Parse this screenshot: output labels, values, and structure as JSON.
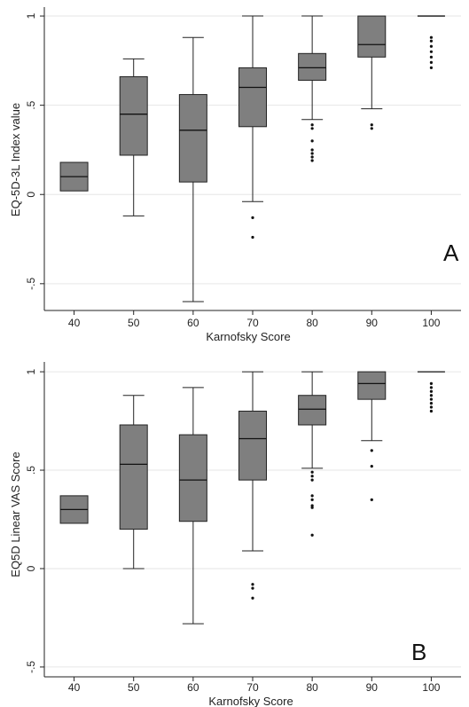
{
  "chart_data": [
    {
      "type": "box",
      "panel_label": "A",
      "xlabel": "Karnofsky Score",
      "ylabel": "EQ-5D-3L Index value",
      "categories": [
        "40",
        "50",
        "60",
        "70",
        "80",
        "90",
        "100"
      ],
      "ylim": [
        -0.65,
        1.05
      ],
      "yticks": [
        {
          "value": -0.5,
          "label": "-.5"
        },
        {
          "value": 0,
          "label": "0"
        },
        {
          "value": 0.5,
          "label": ".5"
        },
        {
          "value": 1,
          "label": "1"
        }
      ],
      "grid": "horizontal",
      "box_color": "#7f7f7f",
      "boxes": [
        {
          "category": "40",
          "whisker_low": 0.02,
          "q1": 0.02,
          "median": 0.1,
          "q3": 0.18,
          "whisker_high": 0.18,
          "outliers": []
        },
        {
          "category": "50",
          "whisker_low": -0.12,
          "q1": 0.22,
          "median": 0.45,
          "q3": 0.66,
          "whisker_high": 0.76,
          "outliers": []
        },
        {
          "category": "60",
          "whisker_low": -0.6,
          "q1": 0.07,
          "median": 0.36,
          "q3": 0.56,
          "whisker_high": 0.88,
          "outliers": []
        },
        {
          "category": "70",
          "whisker_low": -0.04,
          "q1": 0.38,
          "median": 0.6,
          "q3": 0.71,
          "whisker_high": 1.0,
          "outliers": [
            -0.13,
            -0.24
          ]
        },
        {
          "category": "80",
          "whisker_low": 0.42,
          "q1": 0.64,
          "median": 0.71,
          "q3": 0.79,
          "whisker_high": 1.0,
          "outliers": [
            0.39,
            0.37,
            0.3,
            0.25,
            0.23,
            0.21,
            0.19
          ]
        },
        {
          "category": "90",
          "whisker_low": 0.48,
          "q1": 0.77,
          "median": 0.84,
          "q3": 1.0,
          "whisker_high": 1.0,
          "outliers": [
            0.39,
            0.37
          ]
        },
        {
          "category": "100",
          "whisker_low": 1.0,
          "q1": 1.0,
          "median": 1.0,
          "q3": 1.0,
          "whisker_high": 1.0,
          "outliers": [
            0.88,
            0.86,
            0.83,
            0.8,
            0.77,
            0.74,
            0.71
          ]
        }
      ]
    },
    {
      "type": "box",
      "panel_label": "B",
      "xlabel": "Karnofsky Score",
      "ylabel": "EQ5D Linear VAS Score",
      "categories": [
        "40",
        "50",
        "60",
        "70",
        "80",
        "90",
        "100"
      ],
      "ylim": [
        -0.55,
        1.05
      ],
      "yticks": [
        {
          "value": -0.5,
          "label": "-.5"
        },
        {
          "value": 0,
          "label": "0"
        },
        {
          "value": 0.5,
          "label": ".5"
        },
        {
          "value": 1,
          "label": "1"
        }
      ],
      "grid": "horizontal",
      "box_color": "#7f7f7f",
      "boxes": [
        {
          "category": "40",
          "whisker_low": 0.23,
          "q1": 0.23,
          "median": 0.3,
          "q3": 0.37,
          "whisker_high": 0.37,
          "outliers": []
        },
        {
          "category": "50",
          "whisker_low": 0.0,
          "q1": 0.2,
          "median": 0.53,
          "q3": 0.73,
          "whisker_high": 0.88,
          "outliers": []
        },
        {
          "category": "60",
          "whisker_low": -0.28,
          "q1": 0.24,
          "median": 0.45,
          "q3": 0.68,
          "whisker_high": 0.92,
          "outliers": []
        },
        {
          "category": "70",
          "whisker_low": 0.09,
          "q1": 0.45,
          "median": 0.66,
          "q3": 0.8,
          "whisker_high": 1.0,
          "outliers": [
            -0.08,
            -0.1,
            -0.15
          ]
        },
        {
          "category": "80",
          "whisker_low": 0.51,
          "q1": 0.73,
          "median": 0.81,
          "q3": 0.88,
          "whisker_high": 1.0,
          "outliers": [
            0.49,
            0.47,
            0.45,
            0.37,
            0.35,
            0.32,
            0.31,
            0.17
          ]
        },
        {
          "category": "90",
          "whisker_low": 0.65,
          "q1": 0.86,
          "median": 0.94,
          "q3": 1.0,
          "whisker_high": 1.0,
          "outliers": [
            0.6,
            0.52,
            0.35
          ]
        },
        {
          "category": "100",
          "whisker_low": 1.0,
          "q1": 1.0,
          "median": 1.0,
          "q3": 1.0,
          "whisker_high": 1.0,
          "outliers": [
            0.94,
            0.92,
            0.9,
            0.88,
            0.86,
            0.84,
            0.82,
            0.8
          ]
        }
      ]
    }
  ]
}
